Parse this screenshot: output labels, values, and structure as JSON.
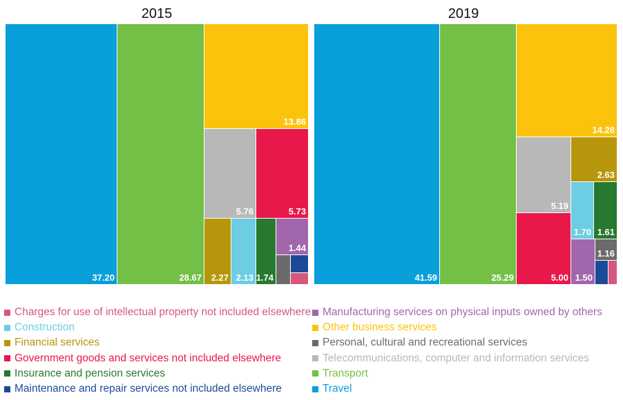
{
  "chart_data": {
    "type": "treemap",
    "panels": [
      {
        "title": "2015",
        "values": {
          "Travel": 37.2,
          "Transport": 28.67,
          "Other business services": 13.86,
          "Telecommunications, computer and information services": 5.76,
          "Government goods and services not included elsewhere": 5.73,
          "Financial services": 2.27,
          "Construction": 2.13,
          "Insurance and pension services": 1.74,
          "Manufacturing services on physical inputs owned by others": 1.44,
          "Personal, cultural and recreational services": null,
          "Maintenance and repair services not included elsewhere": null,
          "Charges for use of intellectual property not included elsewhere": null
        }
      },
      {
        "title": "2019",
        "values": {
          "Travel": 41.59,
          "Transport": 25.29,
          "Other business services": 14.28,
          "Telecommunications, computer and information services": 5.19,
          "Financial services": 2.63,
          "Construction": 1.7,
          "Insurance and pension services": 1.61,
          "Government goods and services not included elsewhere": 5.0,
          "Manufacturing services on physical inputs owned by others": 1.5,
          "Personal, cultural and recreational services": 1.16,
          "Maintenance and repair services not included elsewhere": null,
          "Charges for use of intellectual property not included elsewhere": null
        }
      }
    ],
    "legend": [
      {
        "label": "Charges for use of intellectual property not included elsewhere",
        "color": "#d6577e"
      },
      {
        "label": "Construction",
        "color": "#6ccde3"
      },
      {
        "label": "Financial services",
        "color": "#b8960b"
      },
      {
        "label": "Government goods and services not included elsewhere",
        "color": "#e8184a"
      },
      {
        "label": "Insurance and pension services",
        "color": "#26792f"
      },
      {
        "label": "Maintenance and repair services not included elsewhere",
        "color": "#1c4a97"
      },
      {
        "label": "Manufacturing services on physical inputs owned by others",
        "color": "#a266ac"
      },
      {
        "label": "Other business services",
        "color": "#fcc30c"
      },
      {
        "label": "Personal, cultural and recreational services",
        "color": "#6b6b6b"
      },
      {
        "label": "Telecommunications, computer and information services",
        "color": "#b8b8b8"
      },
      {
        "label": "Transport",
        "color": "#74bf45"
      },
      {
        "label": "Travel",
        "color": "#099fdb"
      }
    ]
  }
}
